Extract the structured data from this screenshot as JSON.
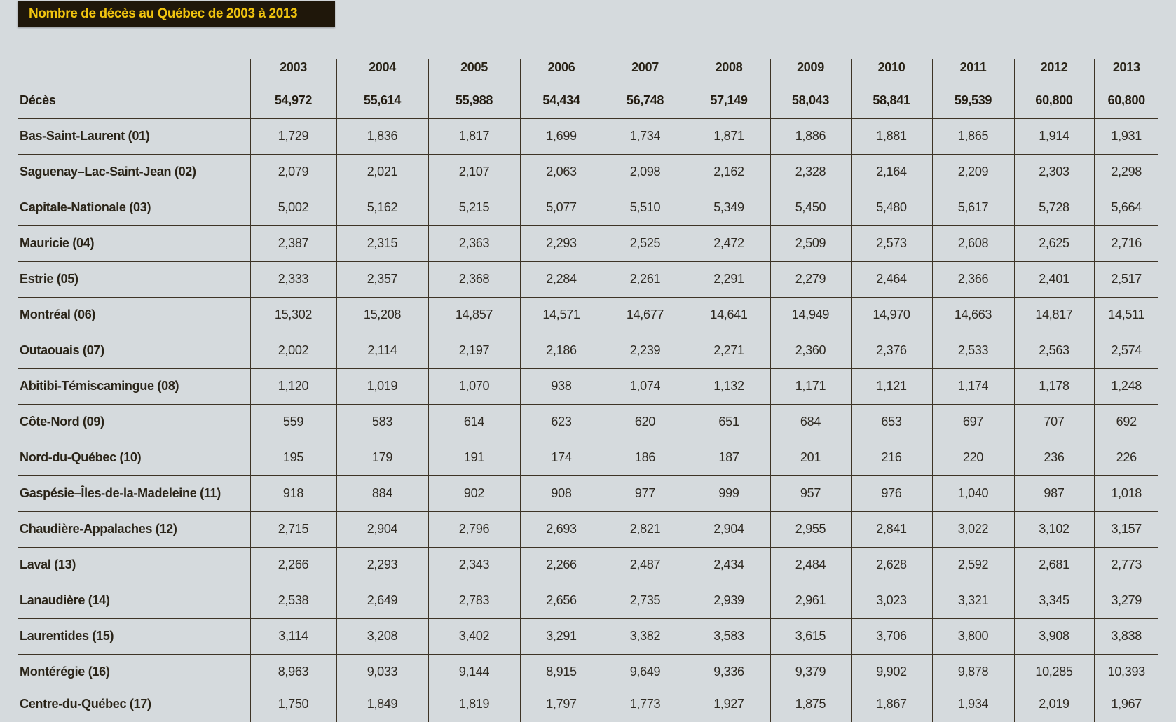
{
  "title": "Nombre de décès au Québec de 2003 à 2013",
  "colors": {
    "background": "#d5dadd",
    "title_bg": "#1f170a",
    "title_text": "#f1c40f",
    "rule": "#3d3426"
  },
  "table": {
    "years": [
      "2003",
      "2004",
      "2005",
      "2006",
      "2007",
      "2008",
      "2009",
      "2010",
      "2011",
      "2012",
      "2013"
    ],
    "rows": [
      {
        "label": "Décès",
        "values": [
          "54,972",
          "55,614",
          "55,988",
          "54,434",
          "56,748",
          "57,149",
          "58,043",
          "58,841",
          "59,539",
          "60,800",
          "60,800"
        ]
      },
      {
        "label": "Bas-Saint-Laurent (01)",
        "values": [
          "1,729",
          "1,836",
          "1,817",
          "1,699",
          "1,734",
          "1,871",
          "1,886",
          "1,881",
          "1,865",
          "1,914",
          "1,931"
        ]
      },
      {
        "label": "Saguenay–Lac-Saint-Jean (02)",
        "values": [
          "2,079",
          "2,021",
          "2,107",
          "2,063",
          "2,098",
          "2,162",
          "2,328",
          "2,164",
          "2,209",
          "2,303",
          "2,298"
        ]
      },
      {
        "label": "Capitale-Nationale (03)",
        "values": [
          "5,002",
          "5,162",
          "5,215",
          "5,077",
          "5,510",
          "5,349",
          "5,450",
          "5,480",
          "5,617",
          "5,728",
          "5,664"
        ]
      },
      {
        "label": "Mauricie (04)",
        "values": [
          "2,387",
          "2,315",
          "2,363",
          "2,293",
          "2,525",
          "2,472",
          "2,509",
          "2,573",
          "2,608",
          "2,625",
          "2,716"
        ]
      },
      {
        "label": "Estrie (05)",
        "values": [
          "2,333",
          "2,357",
          "2,368",
          "2,284",
          "2,261",
          "2,291",
          "2,279",
          "2,464",
          "2,366",
          "2,401",
          "2,517"
        ]
      },
      {
        "label": "Montréal (06)",
        "values": [
          "15,302",
          "15,208",
          "14,857",
          "14,571",
          "14,677",
          "14,641",
          "14,949",
          "14,970",
          "14,663",
          "14,817",
          "14,511"
        ]
      },
      {
        "label": "Outaouais (07)",
        "values": [
          "2,002",
          "2,114",
          "2,197",
          "2,186",
          "2,239",
          "2,271",
          "2,360",
          "2,376",
          "2,533",
          "2,563",
          "2,574"
        ]
      },
      {
        "label": "Abitibi-Témiscamingue (08)",
        "values": [
          "1,120",
          "1,019",
          "1,070",
          "938",
          "1,074",
          "1,132",
          "1,171",
          "1,121",
          "1,174",
          "1,178",
          "1,248"
        ]
      },
      {
        "label": "Côte-Nord (09)",
        "values": [
          "559",
          "583",
          "614",
          "623",
          "620",
          "651",
          "684",
          "653",
          "697",
          "707",
          "692"
        ]
      },
      {
        "label": "Nord-du-Québec (10)",
        "values": [
          "195",
          "179",
          "191",
          "174",
          "186",
          "187",
          "201",
          "216",
          "220",
          "236",
          "226"
        ]
      },
      {
        "label": "Gaspésie–Îles-de-la-Madeleine (11)",
        "values": [
          "918",
          "884",
          "902",
          "908",
          "977",
          "999",
          "957",
          "976",
          "1,040",
          "987",
          "1,018"
        ]
      },
      {
        "label": "Chaudière-Appalaches (12)",
        "values": [
          "2,715",
          "2,904",
          "2,796",
          "2,693",
          "2,821",
          "2,904",
          "2,955",
          "2,841",
          "3,022",
          "3,102",
          "3,157"
        ]
      },
      {
        "label": "Laval (13)",
        "values": [
          "2,266",
          "2,293",
          "2,343",
          "2,266",
          "2,487",
          "2,434",
          "2,484",
          "2,628",
          "2,592",
          "2,681",
          "2,773"
        ]
      },
      {
        "label": "Lanaudière (14)",
        "values": [
          "2,538",
          "2,649",
          "2,783",
          "2,656",
          "2,735",
          "2,939",
          "2,961",
          "3,023",
          "3,321",
          "3,345",
          "3,279"
        ]
      },
      {
        "label": "Laurentides (15)",
        "values": [
          "3,114",
          "3,208",
          "3,402",
          "3,291",
          "3,382",
          "3,583",
          "3,615",
          "3,706",
          "3,800",
          "3,908",
          "3,838"
        ]
      },
      {
        "label": "Montérégie (16)",
        "values": [
          "8,963",
          "9,033",
          "9,144",
          "8,915",
          "9,649",
          "9,336",
          "9,379",
          "9,902",
          "9,878",
          "10,285",
          "10,393"
        ]
      },
      {
        "label": "Centre-du-Québec (17)",
        "values": [
          "1,750",
          "1,849",
          "1,819",
          "1,797",
          "1,773",
          "1,927",
          "1,875",
          "1,867",
          "1,934",
          "2,019",
          "1,967"
        ]
      }
    ]
  }
}
